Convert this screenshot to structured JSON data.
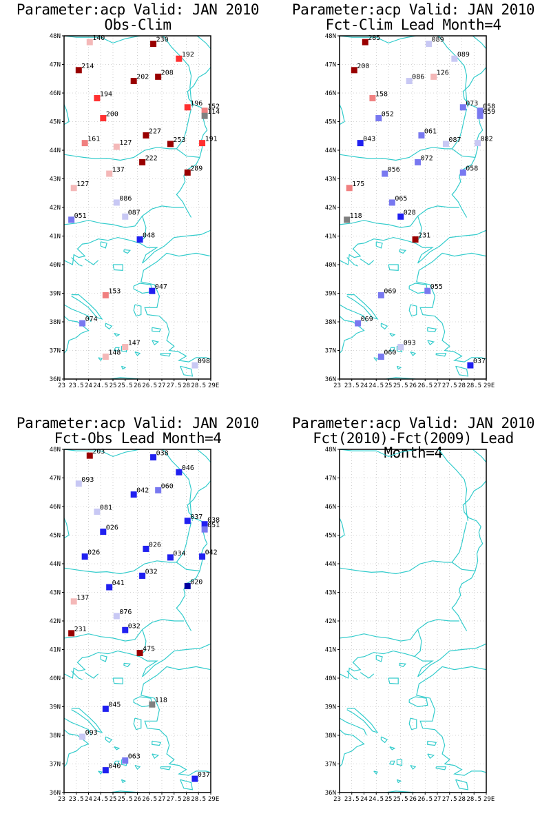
{
  "panels": [
    {
      "id": "p1",
      "title1": "Parameter:acp Valid: JAN 2010",
      "title2": "Obs-Clim",
      "stations": [
        {
          "lon": 24.05,
          "lat": 47.78,
          "label": "140",
          "color": "#f4b8b8"
        },
        {
          "lon": 26.65,
          "lat": 47.72,
          "label": "230",
          "color": "#990000"
        },
        {
          "lon": 27.7,
          "lat": 47.2,
          "label": "192",
          "color": "#ff3030"
        },
        {
          "lon": 23.6,
          "lat": 46.8,
          "label": "214",
          "color": "#990000"
        },
        {
          "lon": 26.85,
          "lat": 46.57,
          "label": "208",
          "color": "#990000"
        },
        {
          "lon": 25.85,
          "lat": 46.42,
          "label": "202",
          "color": "#990000"
        },
        {
          "lon": 24.35,
          "lat": 45.82,
          "label": "194",
          "color": "#ff3030"
        },
        {
          "lon": 28.05,
          "lat": 45.5,
          "label": "196",
          "color": "#ff3030"
        },
        {
          "lon": 28.75,
          "lat": 45.38,
          "label": "152",
          "color": "#f08080"
        },
        {
          "lon": 28.75,
          "lat": 45.2,
          "label": "114",
          "color": "#808080"
        },
        {
          "lon": 24.6,
          "lat": 45.12,
          "label": "200",
          "color": "#ff3030"
        },
        {
          "lon": 26.35,
          "lat": 44.52,
          "label": "227",
          "color": "#990000"
        },
        {
          "lon": 23.85,
          "lat": 44.25,
          "label": "161",
          "color": "#f08080"
        },
        {
          "lon": 25.15,
          "lat": 44.12,
          "label": "127",
          "color": "#f4b8b8"
        },
        {
          "lon": 27.35,
          "lat": 44.22,
          "label": "253",
          "color": "#990000"
        },
        {
          "lon": 28.65,
          "lat": 44.25,
          "label": "191",
          "color": "#ff3030"
        },
        {
          "lon": 26.2,
          "lat": 43.58,
          "label": "222",
          "color": "#990000"
        },
        {
          "lon": 28.05,
          "lat": 43.22,
          "label": "289",
          "color": "#990000"
        },
        {
          "lon": 24.85,
          "lat": 43.18,
          "label": "137",
          "color": "#f4b8b8"
        },
        {
          "lon": 23.4,
          "lat": 42.68,
          "label": "127",
          "color": "#f4b8b8"
        },
        {
          "lon": 25.15,
          "lat": 42.17,
          "label": "086",
          "color": "#c8c8f4"
        },
        {
          "lon": 25.5,
          "lat": 41.68,
          "label": "087",
          "color": "#c8c8f4"
        },
        {
          "lon": 23.3,
          "lat": 41.57,
          "label": "051",
          "color": "#7878f0"
        },
        {
          "lon": 26.1,
          "lat": 40.88,
          "label": "048",
          "color": "#2020f0"
        },
        {
          "lon": 26.6,
          "lat": 39.08,
          "label": "047",
          "color": "#2020f0"
        },
        {
          "lon": 24.7,
          "lat": 38.93,
          "label": "153",
          "color": "#f08080"
        },
        {
          "lon": 23.75,
          "lat": 37.95,
          "label": "074",
          "color": "#7878f0"
        },
        {
          "lon": 25.5,
          "lat": 37.12,
          "label": "147",
          "color": "#f4b8b8"
        },
        {
          "lon": 24.7,
          "lat": 36.78,
          "label": "148",
          "color": "#f4b8b8"
        },
        {
          "lon": 28.35,
          "lat": 36.48,
          "label": "098",
          "color": "#c8c8f4"
        }
      ]
    },
    {
      "id": "p2",
      "title1": "Parameter:acp Valid: JAN 2010",
      "title2": "Fct-Clim Lead Month=4",
      "stations": [
        {
          "lon": 24.05,
          "lat": 47.78,
          "label": "285",
          "color": "#990000"
        },
        {
          "lon": 26.65,
          "lat": 47.72,
          "label": "089",
          "color": "#c8c8f4"
        },
        {
          "lon": 27.7,
          "lat": 47.2,
          "label": "089",
          "color": "#c8c8f4"
        },
        {
          "lon": 23.6,
          "lat": 46.8,
          "label": "200",
          "color": "#990000"
        },
        {
          "lon": 26.85,
          "lat": 46.57,
          "label": "126",
          "color": "#f4b8b8"
        },
        {
          "lon": 25.85,
          "lat": 46.42,
          "label": "086",
          "color": "#c8c8f4"
        },
        {
          "lon": 24.35,
          "lat": 45.82,
          "label": "158",
          "color": "#f08080"
        },
        {
          "lon": 28.05,
          "lat": 45.5,
          "label": "073",
          "color": "#7878f0"
        },
        {
          "lon": 28.75,
          "lat": 45.38,
          "label": "058",
          "color": "#7878f0"
        },
        {
          "lon": 28.75,
          "lat": 45.2,
          "label": "059",
          "color": "#7878f0"
        },
        {
          "lon": 24.6,
          "lat": 45.12,
          "label": "052",
          "color": "#7878f0"
        },
        {
          "lon": 26.35,
          "lat": 44.52,
          "label": "061",
          "color": "#7878f0"
        },
        {
          "lon": 23.85,
          "lat": 44.25,
          "label": "043",
          "color": "#2020f0"
        },
        {
          "lon": 27.35,
          "lat": 44.22,
          "label": "087",
          "color": "#c8c8f4"
        },
        {
          "lon": 28.65,
          "lat": 44.25,
          "label": "082",
          "color": "#c8c8f4"
        },
        {
          "lon": 26.2,
          "lat": 43.58,
          "label": "072",
          "color": "#7878f0"
        },
        {
          "lon": 28.05,
          "lat": 43.22,
          "label": "058",
          "color": "#7878f0"
        },
        {
          "lon": 24.85,
          "lat": 43.18,
          "label": "056",
          "color": "#7878f0"
        },
        {
          "lon": 23.4,
          "lat": 42.68,
          "label": "175",
          "color": "#f08080"
        },
        {
          "lon": 25.15,
          "lat": 42.17,
          "label": "065",
          "color": "#7878f0"
        },
        {
          "lon": 25.5,
          "lat": 41.68,
          "label": "028",
          "color": "#2020f0"
        },
        {
          "lon": 23.3,
          "lat": 41.57,
          "label": "118",
          "color": "#808080"
        },
        {
          "lon": 26.1,
          "lat": 40.88,
          "label": "231",
          "color": "#990000"
        },
        {
          "lon": 26.6,
          "lat": 39.08,
          "label": "055",
          "color": "#7878f0"
        },
        {
          "lon": 24.7,
          "lat": 38.93,
          "label": "069",
          "color": "#7878f0"
        },
        {
          "lon": 23.75,
          "lat": 37.95,
          "label": "069",
          "color": "#7878f0"
        },
        {
          "lon": 25.5,
          "lat": 37.12,
          "label": "093",
          "color": "#c8c8f4"
        },
        {
          "lon": 24.7,
          "lat": 36.78,
          "label": "060",
          "color": "#7878f0"
        },
        {
          "lon": 28.35,
          "lat": 36.48,
          "label": "037",
          "color": "#2020f0"
        }
      ]
    },
    {
      "id": "p3",
      "title1": "Parameter:acp Valid: JAN 2010",
      "title2": "Fct-Obs Lead Month=4",
      "stations": [
        {
          "lon": 24.05,
          "lat": 47.78,
          "label": "203",
          "color": "#990000"
        },
        {
          "lon": 26.65,
          "lat": 47.72,
          "label": "038",
          "color": "#2020f0"
        },
        {
          "lon": 27.7,
          "lat": 47.2,
          "label": "046",
          "color": "#2020f0"
        },
        {
          "lon": 23.6,
          "lat": 46.8,
          "label": "093",
          "color": "#c8c8f4"
        },
        {
          "lon": 26.85,
          "lat": 46.57,
          "label": "060",
          "color": "#7878f0"
        },
        {
          "lon": 25.85,
          "lat": 46.42,
          "label": "042",
          "color": "#2020f0"
        },
        {
          "lon": 24.35,
          "lat": 45.82,
          "label": "081",
          "color": "#c8c8f4"
        },
        {
          "lon": 28.05,
          "lat": 45.5,
          "label": "037",
          "color": "#2020f0"
        },
        {
          "lon": 28.75,
          "lat": 45.38,
          "label": "038",
          "color": "#2020f0"
        },
        {
          "lon": 28.75,
          "lat": 45.2,
          "label": "051",
          "color": "#7878f0"
        },
        {
          "lon": 24.6,
          "lat": 45.12,
          "label": "026",
          "color": "#2020f0"
        },
        {
          "lon": 26.35,
          "lat": 44.52,
          "label": "026",
          "color": "#2020f0"
        },
        {
          "lon": 23.85,
          "lat": 44.25,
          "label": "026",
          "color": "#2020f0"
        },
        {
          "lon": 27.35,
          "lat": 44.22,
          "label": "034",
          "color": "#2020f0"
        },
        {
          "lon": 28.65,
          "lat": 44.25,
          "label": "042",
          "color": "#2020f0"
        },
        {
          "lon": 26.2,
          "lat": 43.58,
          "label": "032",
          "color": "#2020f0"
        },
        {
          "lon": 28.05,
          "lat": 43.22,
          "label": "020",
          "color": "#0000a0"
        },
        {
          "lon": 24.85,
          "lat": 43.18,
          "label": "041",
          "color": "#2020f0"
        },
        {
          "lon": 23.4,
          "lat": 42.68,
          "label": "137",
          "color": "#f4b8b8"
        },
        {
          "lon": 25.15,
          "lat": 42.17,
          "label": "076",
          "color": "#c8c8f4"
        },
        {
          "lon": 25.5,
          "lat": 41.68,
          "label": "032",
          "color": "#2020f0"
        },
        {
          "lon": 23.3,
          "lat": 41.57,
          "label": "231",
          "color": "#990000"
        },
        {
          "lon": 26.1,
          "lat": 40.88,
          "label": "475",
          "color": "#990000"
        },
        {
          "lon": 26.6,
          "lat": 39.08,
          "label": "118",
          "color": "#808080"
        },
        {
          "lon": 24.7,
          "lat": 38.93,
          "label": "045",
          "color": "#2020f0"
        },
        {
          "lon": 23.75,
          "lat": 37.95,
          "label": "093",
          "color": "#c8c8f4"
        },
        {
          "lon": 25.5,
          "lat": 37.12,
          "label": "063",
          "color": "#7878f0"
        },
        {
          "lon": 24.7,
          "lat": 36.78,
          "label": "040",
          "color": "#2020f0"
        },
        {
          "lon": 28.35,
          "lat": 36.48,
          "label": "037",
          "color": "#2020f0"
        }
      ]
    },
    {
      "id": "p4",
      "title1": "Parameter:acp Valid: JAN 2010",
      "title2": "Fct(2010)-Fct(2009) Lead Month=4",
      "stations": []
    }
  ],
  "lat_labels": [
    "36N",
    "37N",
    "38N",
    "39N",
    "40N",
    "41N",
    "42N",
    "43N",
    "44N",
    "45N",
    "46N",
    "47N",
    "48N"
  ],
  "lon_labels": [
    "23",
    "23.5",
    "24",
    "24.5",
    "25",
    "25.5",
    "26",
    "26.5",
    "27",
    "27.5",
    "28",
    "28.5",
    "29E"
  ],
  "colors": {
    "coast": "#33cccc",
    "grid": "#aaaaaa",
    "frame": "#000000"
  }
}
